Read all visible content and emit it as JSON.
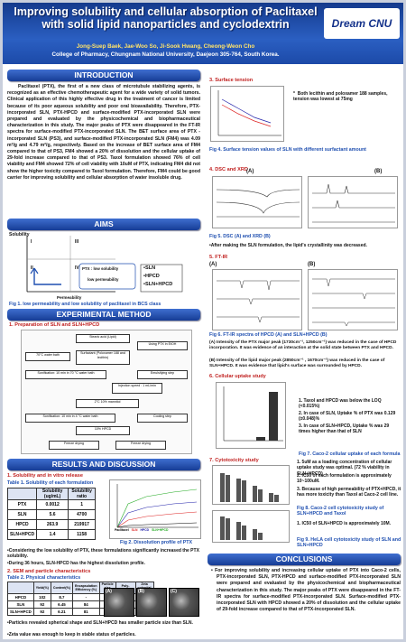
{
  "header": {
    "title": "Improving solubility and cellular absorption of Paclitaxel with solid lipid nanoparticles and cyclodextrin",
    "authors": "Jong-Suep Baek, Jae-Woo So, Ji-Sook Hwang, Cheong-Weon Cho",
    "affiliation": "College of Pharmacy, Chungnam National University, Daejeon 305-764, South Korea.",
    "logo": "Dream CNU"
  },
  "introduction": {
    "heading": "INTRODUCTION",
    "text": "Paclitaxel (PTX), the first of a new class of microtubule stabilizing agents, is recognized as an effective chemotherapeutic agent for a wide variety of solid tumors. Clinical application of this highly effective drug in the treatment of cancer is limited because of its poor aqueous solubility and poor oral bioavailability. Therefore, PTX-incorporated SLN, PTX-HPCD and surface-modified PTX-incorporated SLN were prepared and evaluated by the physicochemical and biopharmaceutical characterization in this study. The major peaks of PTX were disappeared in the FT-IR spectra for surface-modified PTX-incorporated SLN. The BET surface area of PTX -incorporated SLN (PS3), and surface-modified PTX-incorporated SLN (FM4) was 4.09 m²/g and 4.79 m²/g, respectively. Based on the increase of BET surface area of FM4 compared to that of PS3, FM4 showed a 20% of dissolution and the cellular uptake of 29-fold increase compared to that of PS3. Taxol formulation showed 76% of cell viability and FM4 showed 72% of cell viability with 10uM of PTX, indicating FM4 did not show the higher toxicity compared to Taxol formulation. Therefore, FM4 could be good carrier for improving solubility and cellular absorption of water insoluble drug."
  },
  "aims": {
    "heading": "AIMS",
    "y_axis": "Solubility",
    "x_axis": "Permeability",
    "quadrants": [
      "I",
      "III",
      "II",
      "IV"
    ],
    "ptx_box": [
      "PTX : low solubility",
      "low permeability"
    ],
    "formulations": [
      "SLN",
      "HPCD",
      "SLN+HPCD"
    ],
    "caption": "Fig 1. low permeability and low solubility of paclitaxel in BCS class"
  },
  "method": {
    "heading": "EXPERIMENTAL METHOD",
    "subtitle": "1. Preparation of SLN and SLN+HPCD",
    "steps": [
      "Stearic acid (Lipid)",
      "Using PTX in EtOH",
      "70°C water bath",
      "Surfactant (Poloxamer 188 and lecithin)",
      "Sonification: 10 min in 70 °C water bath",
      "Emulsifying step",
      "Injection speed : 1 mL/min",
      "2°C 10% mannitol",
      "Sonification: 10 min in 4 °C water bath",
      "Cooling step",
      "10% HPCD",
      "Freeze drying",
      "Freeze drying"
    ]
  },
  "results": {
    "heading": "RESULTS AND DISCUSSION",
    "solubility": {
      "subtitle": "1. Solubility and in vitro release",
      "table_title": "Table 1. Solubility of each formulation",
      "table": {
        "header": [
          "",
          "Solubility (ug/mL)",
          "Solubility ratio"
        ],
        "rows": [
          [
            "PTX",
            "0.0012",
            "1"
          ],
          [
            "SLN",
            "5.6",
            "4700"
          ],
          [
            "HPCD",
            "263.9",
            "219917"
          ],
          [
            "SLN+HPCD",
            "1.4",
            "1158"
          ]
        ]
      },
      "fig_caption": "Fig 2. Dissolution profile of PTX",
      "legend": [
        "Paclitaxel",
        "SLN",
        "HPCD",
        "SLN+HPCD"
      ],
      "bullets": [
        "Considering the low solubility of PTX, these formulations significantly increased the PTX solubility.",
        "During 36 hours, SLN-HPCD has the highest dissolution profile."
      ]
    },
    "sem": {
      "subtitle": "2. SEM and particle characteristics",
      "table_title": "Table 2. Physical characteristics",
      "table": {
        "header": [
          "",
          "Yield(%)",
          "Content(%)",
          "Encapsulation Efficiency (%)",
          "Particle size (nm)",
          "Poly-dispersity",
          "Zeta potential (mV)"
        ],
        "rows": [
          [
            "HPCD",
            "102",
            "8.7",
            "-",
            "-",
            "-",
            "-"
          ],
          [
            "SLN",
            "92",
            "6.45",
            "84",
            "316",
            "0.1",
            "-46"
          ],
          [
            "SLN+HPCD",
            "92",
            "6.21",
            "81",
            "230",
            "0.3",
            "-45"
          ]
        ]
      },
      "panels": [
        "(A)",
        "(B)",
        "(C)"
      ],
      "bullets": [
        "Particles revealed spherical shape and SLN+HPCD has smaller particle size than SLN.",
        "Zeta value was enough to keep in stable status of particles."
      ]
    }
  },
  "surface": {
    "subtitle": "3. Surface tension",
    "note": "Both lecithin and poloxamer 188 samples, tension was lowest at 75mg",
    "caption": "Fig 4. Surface tension values of SLN with different surfactant amount"
  },
  "dsc": {
    "subtitle": "4. DSC and XRD",
    "panels": [
      "(A)",
      "(B)"
    ],
    "caption": "Fig 5. DSC (A) and XRD (B)",
    "bullet": "After making the SLN formulation, the lipid's crystallinity was decreased."
  },
  "ftir": {
    "subtitle": "5. FT-IR",
    "panels": [
      "(A)",
      "(B)"
    ],
    "caption": "Fig 6. FT-IR spectra of HPCD (A) and SLN+HPCD (B)",
    "notes": [
      "(A) Intensity of the PTX major peak (1730cm⁻¹, 1250cm⁻¹) was reduced in the case of HPCD incorporation. It was evidence of an interaction at the solid state between PTX and HPCD.",
      "(B) Intensity of the lipid major peak (2850cm⁻¹ , 1670cm⁻¹) was reduced in the case of SLN+HPCD. It was evidence that lipid's surface was surrounded by HPCD."
    ]
  },
  "uptake": {
    "subtitle": "6. Cellular uptake study",
    "points": [
      "1. Taxol and HPCD was below the LOQ (<0.015%)",
      "2. In case of SLN, Uptake % of PTX was 0.129 (±0.048)%",
      "3. In case of SLN+HPCD, Uptake % was 29 times higher than that of SLN"
    ],
    "caption": "Fig 7. Caco-2 cellular uptake of each formula"
  },
  "cytotox": {
    "subtitle": "7. Cytotoxicity study",
    "points": [
      "1. 5uM as a loading concentration of cellular uptake study was optimal. (72 % viability in SLN+HPCD)",
      "2. IC50 of each formulation is approximately 10~100uM.",
      "3. Because of high permeability of PTX+HPCD, it has more toxicity than Taxol at Caco-2 cell line.",
      "1. IC50 of SLN+HPCD is approximately 10M."
    ],
    "captions": [
      "Fig 8. Caco-2 cell cytotoxicity study of SLN+HPCD and Taxol",
      "Fig 9. HeLA cell cytotoxicity study of SLN and SLN+HPCD"
    ]
  },
  "conclusions": {
    "heading": "CONCLUSIONS",
    "text": "For improving solubility and increasing cellular uptake of PTX into Caco-2 cells, PTX-incorporated SLN, PTX-HPCD and surface-modified PTX-incorporated SLN were prepared and evaluated by the physicochemical and biopharmaceutical characterization in this study. The major peaks of PTX were disappeared in the FT-IR spectra for surface-modified PTX-incorporated SLN. Surface-modified PTX-incorporated SLN with HPCD showed a 20% of dissolution and the cellular uptake of 29-fold increase compared to that of PTX-incorporated SLN."
  }
}
